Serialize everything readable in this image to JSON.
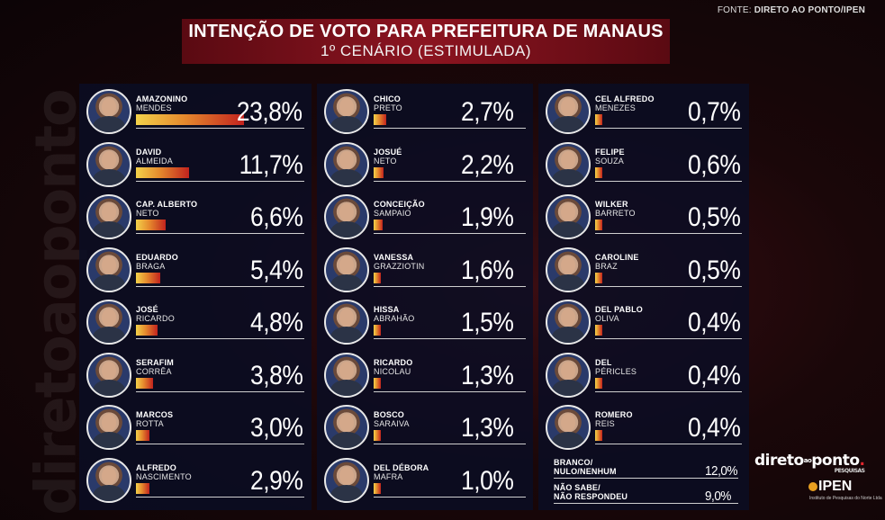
{
  "source_label": "FONTE:",
  "source_name": "DIRETO AO PONTO/IPEN",
  "title": "INTENÇÃO DE VOTO PARA PREFEITURA DE MANAUS",
  "subtitle": "1º CENÁRIO (ESTIMULADA)",
  "watermark": "diretoaoponto",
  "logo": {
    "part1": "direto",
    "part2": "ao",
    "part3": "ponto",
    "dot": ".",
    "sub": "PESQUISAS"
  },
  "ipen": {
    "name": "IPEN",
    "sub": "Instituto de Pesquisas do Norte Ltda"
  },
  "colors": {
    "accent": "#8c1420",
    "bar_start": "#f3d24a",
    "bar_end": "#c2231e",
    "panel": "#0a0e24"
  },
  "chart_data": {
    "type": "bar",
    "title": "INTENÇÃO DE VOTO PARA PREFEITURA DE MANAUS",
    "subtitle": "1º CENÁRIO (ESTIMULADA)",
    "unit": "%",
    "columns": [
      [
        {
          "name1": "AMAZONINO",
          "name2": "MENDES",
          "value": 23.8,
          "label": "23,8%"
        },
        {
          "name1": "DAVID",
          "name2": "ALMEIDA",
          "value": 11.7,
          "label": "11,7%"
        },
        {
          "name1": "CAP. ALBERTO",
          "name2": "NETO",
          "value": 6.6,
          "label": "6,6%"
        },
        {
          "name1": "EDUARDO",
          "name2": "BRAGA",
          "value": 5.4,
          "label": "5,4%"
        },
        {
          "name1": "JOSÉ",
          "name2": "RICARDO",
          "value": 4.8,
          "label": "4,8%"
        },
        {
          "name1": "SERAFIM",
          "name2": "CORRÊA",
          "value": 3.8,
          "label": "3,8%"
        },
        {
          "name1": "MARCOS",
          "name2": "ROTTA",
          "value": 3.0,
          "label": "3,0%"
        },
        {
          "name1": "ALFREDO",
          "name2": "NASCIMENTO",
          "value": 2.9,
          "label": "2,9%"
        }
      ],
      [
        {
          "name1": "CHICO",
          "name2": "PRETO",
          "value": 2.7,
          "label": "2,7%"
        },
        {
          "name1": "JOSUÉ",
          "name2": "NETO",
          "value": 2.2,
          "label": "2,2%"
        },
        {
          "name1": "CONCEIÇÃO",
          "name2": "SAMPAIO",
          "value": 1.9,
          "label": "1,9%"
        },
        {
          "name1": "VANESSA",
          "name2": "GRAZZIOTIN",
          "value": 1.6,
          "label": "1,6%"
        },
        {
          "name1": "HISSA",
          "name2": "ABRAHÃO",
          "value": 1.5,
          "label": "1,5%"
        },
        {
          "name1": "RICARDO",
          "name2": "NICOLAU",
          "value": 1.3,
          "label": "1,3%"
        },
        {
          "name1": "BOSCO",
          "name2": "SARAIVA",
          "value": 1.3,
          "label": "1,3%"
        },
        {
          "name1": "DEL DÉBORA",
          "name2": "MAFRA",
          "value": 1.0,
          "label": "1,0%"
        }
      ],
      [
        {
          "name1": "CEL ALFREDO",
          "name2": "MENEZES",
          "value": 0.7,
          "label": "0,7%"
        },
        {
          "name1": "FELIPE",
          "name2": "SOUZA",
          "value": 0.6,
          "label": "0,6%"
        },
        {
          "name1": "WILKER",
          "name2": "BARRETO",
          "value": 0.5,
          "label": "0,5%"
        },
        {
          "name1": "CAROLINE",
          "name2": "BRAZ",
          "value": 0.5,
          "label": "0,5%"
        },
        {
          "name1": "DEL PABLO",
          "name2": "OLIVA",
          "value": 0.4,
          "label": "0,4%"
        },
        {
          "name1": "DEL",
          "name2": "PÉRICLES",
          "value": 0.4,
          "label": "0,4%"
        },
        {
          "name1": "ROMERO",
          "name2": "REIS",
          "value": 0.4,
          "label": "0,4%"
        }
      ]
    ],
    "others": [
      {
        "line1": "BRANCO/",
        "line2": "NULO/NENHUM",
        "value": 12.0,
        "label": "12,0%"
      },
      {
        "line1": "NÃO SABE/",
        "line2": "NÃO RESPONDEU",
        "value": 9.0,
        "label": "9,0%"
      }
    ]
  }
}
